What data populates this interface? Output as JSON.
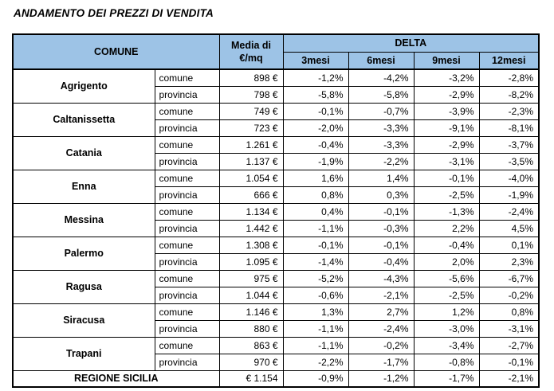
{
  "page_title": "ANDAMENTO DEI PREZZI DI VENDITA",
  "colors": {
    "header_bg": "#9DC3E6",
    "border": "#000000",
    "text": "#000000",
    "background": "#FFFFFF"
  },
  "table": {
    "headers": {
      "comune": "COMUNE",
      "media_line1": "Media di",
      "media_line2": "€/mq",
      "delta": "DELTA",
      "delta_cols": [
        "3mesi",
        "6mesi",
        "9mesi",
        "12mesi"
      ]
    },
    "rows": [
      {
        "comune": "Agrigento",
        "sub": [
          {
            "label": "comune",
            "media": "898 €",
            "delta": [
              "-1,2%",
              "-4,2%",
              "-3,2%",
              "-2,8%"
            ]
          },
          {
            "label": "provincia",
            "media": "798 €",
            "delta": [
              "-5,8%",
              "-5,8%",
              "-2,9%",
              "-8,2%"
            ]
          }
        ]
      },
      {
        "comune": "Caltanissetta",
        "sub": [
          {
            "label": "comune",
            "media": "749 €",
            "delta": [
              "-0,1%",
              "-0,7%",
              "-3,9%",
              "-2,3%"
            ]
          },
          {
            "label": "provincia",
            "media": "723 €",
            "delta": [
              "-2,0%",
              "-3,3%",
              "-9,1%",
              "-8,1%"
            ]
          }
        ]
      },
      {
        "comune": "Catania",
        "sub": [
          {
            "label": "comune",
            "media": "1.261 €",
            "delta": [
              "-0,4%",
              "-3,3%",
              "-2,9%",
              "-3,7%"
            ]
          },
          {
            "label": "provincia",
            "media": "1.137 €",
            "delta": [
              "-1,9%",
              "-2,2%",
              "-3,1%",
              "-3,5%"
            ]
          }
        ]
      },
      {
        "comune": "Enna",
        "sub": [
          {
            "label": "comune",
            "media": "1.054 €",
            "delta": [
              "1,6%",
              "1,4%",
              "-0,1%",
              "-4,0%"
            ]
          },
          {
            "label": "provincia",
            "media": "666 €",
            "delta": [
              "0,8%",
              "0,3%",
              "-2,5%",
              "-1,9%"
            ]
          }
        ]
      },
      {
        "comune": "Messina",
        "sub": [
          {
            "label": "comune",
            "media": "1.134 €",
            "delta": [
              "0,4%",
              "-0,1%",
              "-1,3%",
              "-2,4%"
            ]
          },
          {
            "label": "provincia",
            "media": "1.442 €",
            "delta": [
              "-1,1%",
              "-0,3%",
              "2,2%",
              "4,5%"
            ]
          }
        ]
      },
      {
        "comune": "Palermo",
        "sub": [
          {
            "label": "comune",
            "media": "1.308 €",
            "delta": [
              "-0,1%",
              "-0,1%",
              "-0,4%",
              "0,1%"
            ]
          },
          {
            "label": "provincia",
            "media": "1.095 €",
            "delta": [
              "-1,4%",
              "-0,4%",
              "2,0%",
              "2,3%"
            ]
          }
        ]
      },
      {
        "comune": "Ragusa",
        "sub": [
          {
            "label": "comune",
            "media": "975 €",
            "delta": [
              "-5,2%",
              "-4,3%",
              "-5,6%",
              "-6,7%"
            ]
          },
          {
            "label": "provincia",
            "media": "1.044 €",
            "delta": [
              "-0,6%",
              "-2,1%",
              "-2,5%",
              "-0,2%"
            ]
          }
        ]
      },
      {
        "comune": "Siracusa",
        "sub": [
          {
            "label": "comune",
            "media": "1.146 €",
            "delta": [
              "1,3%",
              "2,7%",
              "1,2%",
              "0,8%"
            ]
          },
          {
            "label": "provincia",
            "media": "880 €",
            "delta": [
              "-1,1%",
              "-2,4%",
              "-3,0%",
              "-3,1%"
            ]
          }
        ]
      },
      {
        "comune": "Trapani",
        "sub": [
          {
            "label": "comune",
            "media": "863 €",
            "delta": [
              "-1,1%",
              "-0,2%",
              "-3,4%",
              "-2,7%"
            ]
          },
          {
            "label": "provincia",
            "media": "970 €",
            "delta": [
              "-2,2%",
              "-1,7%",
              "-0,8%",
              "-0,1%"
            ]
          }
        ]
      }
    ],
    "footer": {
      "label": "REGIONE SICILIA",
      "media": "€ 1.154",
      "delta": [
        "-0,9%",
        "-1,2%",
        "-1,7%",
        "-2,1%"
      ]
    }
  }
}
